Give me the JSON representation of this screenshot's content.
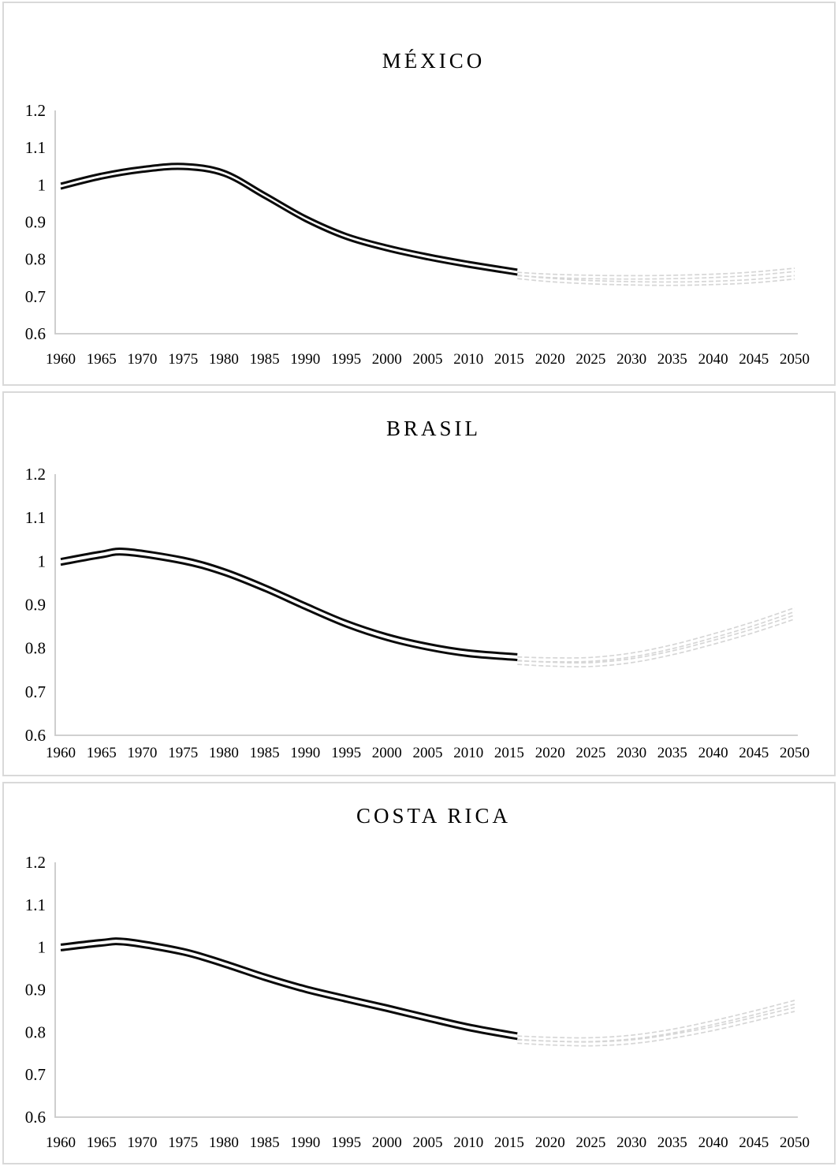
{
  "style": {
    "observed_color": "#0a0a0a",
    "projection_color": "#d6d6d6",
    "axis_color": "#c9c9c9",
    "text_color": "#000000",
    "panel_border_color": "#d9d9d9",
    "background_color": "#ffffff"
  },
  "chart_data": [
    {
      "type": "line",
      "title": "MÉXICO",
      "xlabel": "",
      "ylabel": "",
      "xlim": [
        1960,
        2050
      ],
      "ylim": [
        0.6,
        1.2
      ],
      "grid": false,
      "legend": "none",
      "x_tick_labels": [
        "1960",
        "1965",
        "1970",
        "1975",
        "1980",
        "1985",
        "1990",
        "1995",
        "2000",
        "2005",
        "2010",
        "2015",
        "2020",
        "2025",
        "2030",
        "2035",
        "2040",
        "2045",
        "2050"
      ],
      "y_tick_labels": [
        "1.2",
        "1.1",
        "1",
        "0.9",
        "0.8",
        "0.7",
        "0.6"
      ],
      "series": [
        {
          "name": "observed-upper",
          "role": "observed",
          "x": [
            1960,
            1965,
            1970,
            1975,
            1980,
            1985,
            1990,
            1995,
            2000,
            2005,
            2010,
            2016
          ],
          "y": [
            1.003,
            1.03,
            1.048,
            1.056,
            1.038,
            0.978,
            0.916,
            0.868,
            0.837,
            0.813,
            0.793,
            0.772
          ]
        },
        {
          "name": "observed-lower",
          "role": "observed",
          "x": [
            1960,
            1965,
            1970,
            1975,
            1980,
            1985,
            1990,
            1995,
            2000,
            2005,
            2010,
            2016
          ],
          "y": [
            0.99,
            1.017,
            1.035,
            1.043,
            1.025,
            0.965,
            0.903,
            0.855,
            0.824,
            0.8,
            0.78,
            0.759
          ]
        },
        {
          "name": "projection-high-upper",
          "role": "projection",
          "x": [
            2016,
            2020,
            2025,
            2030,
            2035,
            2040,
            2045,
            2050
          ],
          "y": [
            0.765,
            0.76,
            0.757,
            0.756,
            0.757,
            0.76,
            0.766,
            0.776
          ]
        },
        {
          "name": "projection-high-lower",
          "role": "projection",
          "x": [
            2016,
            2020,
            2025,
            2030,
            2035,
            2040,
            2045,
            2050
          ],
          "y": [
            0.756,
            0.751,
            0.748,
            0.747,
            0.748,
            0.751,
            0.757,
            0.767
          ]
        },
        {
          "name": "projection-low-upper",
          "role": "projection",
          "x": [
            2016,
            2020,
            2025,
            2030,
            2035,
            2040,
            2045,
            2050
          ],
          "y": [
            0.757,
            0.749,
            0.743,
            0.74,
            0.739,
            0.741,
            0.746,
            0.756
          ]
        },
        {
          "name": "projection-low-lower",
          "role": "projection",
          "x": [
            2016,
            2020,
            2025,
            2030,
            2035,
            2040,
            2045,
            2050
          ],
          "y": [
            0.748,
            0.74,
            0.734,
            0.731,
            0.73,
            0.732,
            0.737,
            0.747
          ]
        }
      ]
    },
    {
      "type": "line",
      "title": "BRASIL",
      "xlabel": "",
      "ylabel": "",
      "xlim": [
        1960,
        2050
      ],
      "ylim": [
        0.6,
        1.2
      ],
      "grid": false,
      "legend": "none",
      "x_tick_labels": [
        "1960",
        "1965",
        "1970",
        "1975",
        "1980",
        "1985",
        "1990",
        "1995",
        "2000",
        "2005",
        "2010",
        "2015",
        "2020",
        "2025",
        "2030",
        "2035",
        "2040",
        "2045",
        "2050"
      ],
      "y_tick_labels": [
        "1.2",
        "1.1",
        "1",
        "0.9",
        "0.8",
        "0.7",
        "0.6"
      ],
      "series": [
        {
          "name": "observed-upper",
          "role": "observed",
          "x": [
            1960,
            1965,
            1968,
            1975,
            1980,
            1985,
            1990,
            1995,
            2000,
            2005,
            2010,
            2016
          ],
          "y": [
            1.005,
            1.022,
            1.028,
            1.008,
            0.982,
            0.945,
            0.903,
            0.863,
            0.832,
            0.81,
            0.795,
            0.786
          ]
        },
        {
          "name": "observed-lower",
          "role": "observed",
          "x": [
            1960,
            1965,
            1968,
            1975,
            1980,
            1985,
            1990,
            1995,
            2000,
            2005,
            2010,
            2016
          ],
          "y": [
            0.992,
            1.009,
            1.015,
            0.995,
            0.969,
            0.932,
            0.89,
            0.85,
            0.819,
            0.797,
            0.782,
            0.773
          ]
        },
        {
          "name": "projection-high-upper",
          "role": "projection",
          "x": [
            2016,
            2020,
            2025,
            2030,
            2035,
            2040,
            2045,
            2050
          ],
          "y": [
            0.78,
            0.778,
            0.779,
            0.789,
            0.808,
            0.833,
            0.861,
            0.893
          ]
        },
        {
          "name": "projection-high-lower",
          "role": "projection",
          "x": [
            2016,
            2020,
            2025,
            2030,
            2035,
            2040,
            2045,
            2050
          ],
          "y": [
            0.771,
            0.769,
            0.77,
            0.78,
            0.799,
            0.824,
            0.852,
            0.884
          ]
        },
        {
          "name": "projection-low-upper",
          "role": "projection",
          "x": [
            2016,
            2020,
            2025,
            2030,
            2035,
            2040,
            2045,
            2050
          ],
          "y": [
            0.772,
            0.768,
            0.767,
            0.776,
            0.794,
            0.818,
            0.845,
            0.876
          ]
        },
        {
          "name": "projection-low-lower",
          "role": "projection",
          "x": [
            2016,
            2020,
            2025,
            2030,
            2035,
            2040,
            2045,
            2050
          ],
          "y": [
            0.763,
            0.759,
            0.758,
            0.767,
            0.785,
            0.809,
            0.836,
            0.867
          ]
        }
      ]
    },
    {
      "type": "line",
      "title": "COSTA RICA",
      "xlabel": "",
      "ylabel": "",
      "xlim": [
        1960,
        2050
      ],
      "ylim": [
        0.6,
        1.2
      ],
      "grid": false,
      "legend": "none",
      "x_tick_labels": [
        "1960",
        "1965",
        "1970",
        "1975",
        "1980",
        "1985",
        "1990",
        "1995",
        "2000",
        "2005",
        "2010",
        "2015",
        "2020",
        "2025",
        "2030",
        "2035",
        "2040",
        "2045",
        "2050"
      ],
      "y_tick_labels": [
        "1.2",
        "1.1",
        "1",
        "0.9",
        "0.8",
        "0.7",
        "0.6"
      ],
      "series": [
        {
          "name": "observed-upper",
          "role": "observed",
          "x": [
            1960,
            1965,
            1968,
            1975,
            1980,
            1985,
            1990,
            1995,
            2000,
            2005,
            2010,
            2016
          ],
          "y": [
            1.006,
            1.017,
            1.019,
            0.996,
            0.968,
            0.936,
            0.908,
            0.885,
            0.863,
            0.84,
            0.818,
            0.797
          ]
        },
        {
          "name": "observed-lower",
          "role": "observed",
          "x": [
            1960,
            1965,
            1968,
            1975,
            1980,
            1985,
            1990,
            1995,
            2000,
            2005,
            2010,
            2016
          ],
          "y": [
            0.993,
            1.004,
            1.006,
            0.983,
            0.955,
            0.923,
            0.895,
            0.872,
            0.85,
            0.827,
            0.805,
            0.784
          ]
        },
        {
          "name": "projection-high-upper",
          "role": "projection",
          "x": [
            2016,
            2020,
            2025,
            2030,
            2035,
            2040,
            2045,
            2050
          ],
          "y": [
            0.791,
            0.788,
            0.787,
            0.793,
            0.807,
            0.827,
            0.85,
            0.875
          ]
        },
        {
          "name": "projection-high-lower",
          "role": "projection",
          "x": [
            2016,
            2020,
            2025,
            2030,
            2035,
            2040,
            2045,
            2050
          ],
          "y": [
            0.782,
            0.779,
            0.778,
            0.784,
            0.798,
            0.818,
            0.841,
            0.866
          ]
        },
        {
          "name": "projection-low-upper",
          "role": "projection",
          "x": [
            2016,
            2020,
            2025,
            2030,
            2035,
            2040,
            2045,
            2050
          ],
          "y": [
            0.783,
            0.779,
            0.777,
            0.782,
            0.795,
            0.813,
            0.835,
            0.858
          ]
        },
        {
          "name": "projection-low-lower",
          "role": "projection",
          "x": [
            2016,
            2020,
            2025,
            2030,
            2035,
            2040,
            2045,
            2050
          ],
          "y": [
            0.774,
            0.77,
            0.768,
            0.773,
            0.786,
            0.804,
            0.826,
            0.849
          ]
        }
      ]
    }
  ]
}
